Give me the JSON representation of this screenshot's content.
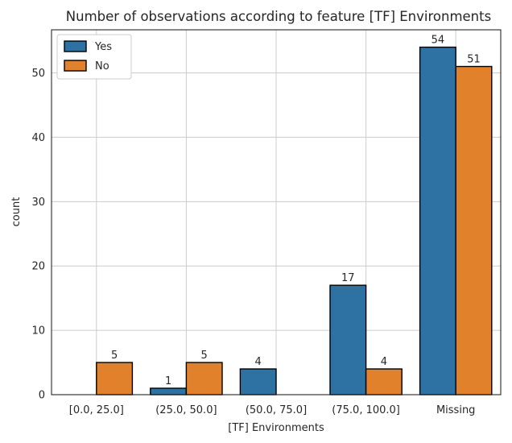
{
  "chart_data": {
    "type": "bar",
    "title": "Number of observations according to feature [TF] Environments",
    "xlabel": "[TF] Environments",
    "ylabel": "count",
    "categories": [
      "[0.0, 25.0]",
      "(25.0, 50.0]",
      "(50.0, 75.0]",
      "(75.0, 100.0]",
      "Missing"
    ],
    "series": [
      {
        "name": "Yes",
        "color": "#2e72a4",
        "values": [
          0,
          1,
          4,
          17,
          54
        ]
      },
      {
        "name": "No",
        "color": "#e1812c",
        "values": [
          5,
          5,
          0,
          4,
          51
        ]
      }
    ],
    "ylim": [
      0,
      56.7
    ],
    "yticks": [
      0,
      10,
      20,
      30,
      40,
      50
    ],
    "grid": true,
    "legend_position": "top-left"
  }
}
